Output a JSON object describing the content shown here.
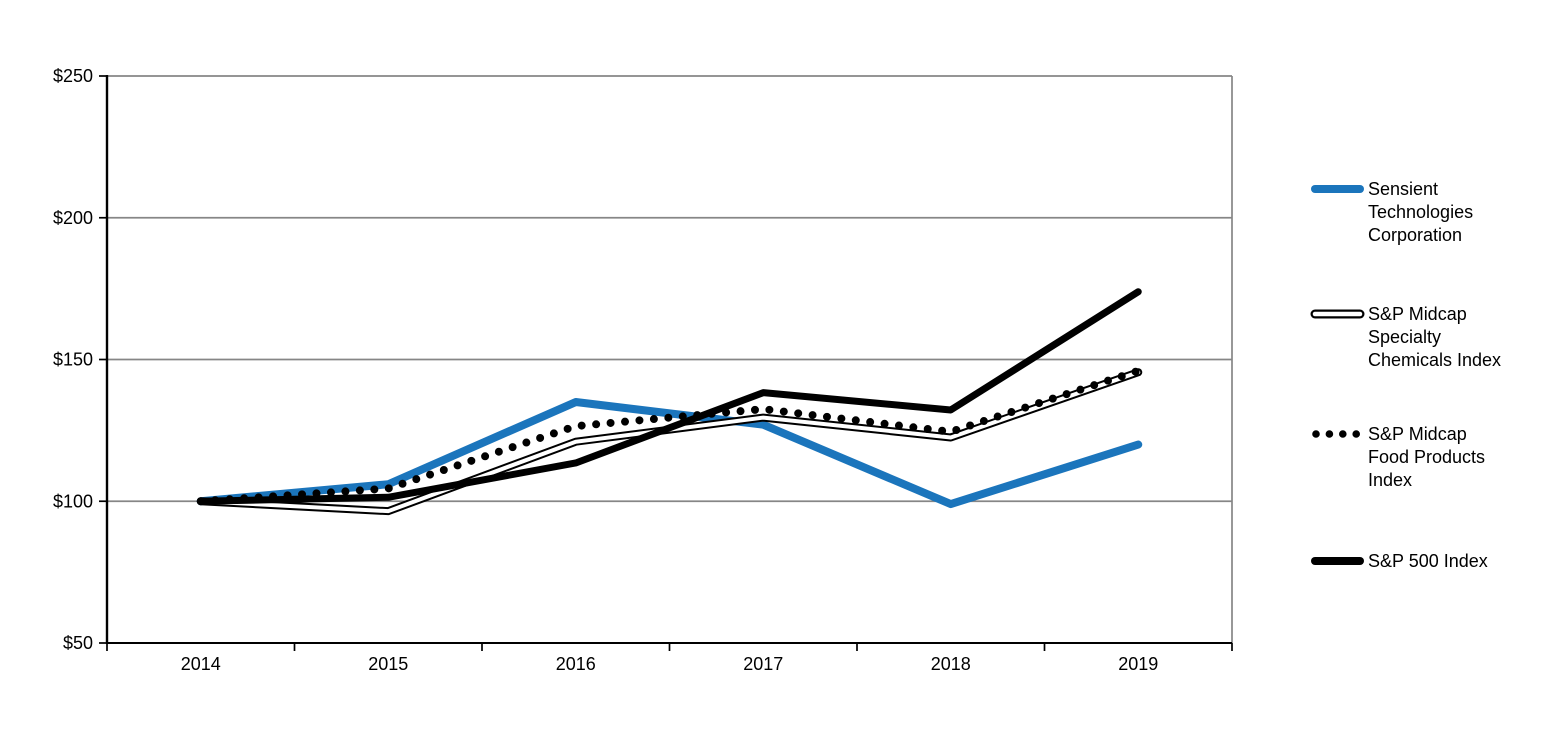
{
  "chart_data": {
    "type": "line",
    "title": "",
    "categories": [
      "2014",
      "2015",
      "2016",
      "2017",
      "2018",
      "2019"
    ],
    "series": [
      {
        "name": "Sensient Technologies Corporation",
        "style": "solid",
        "color": "#1B75BC",
        "width": 8,
        "values": [
          100,
          106,
          135,
          127,
          99,
          120
        ]
      },
      {
        "name": "S&P Midcap Specialty Chemicals Index",
        "style": "double",
        "color": "#000000",
        "width": 8,
        "values": [
          100,
          96.5,
          121,
          129.5,
          122.5,
          145.5
        ]
      },
      {
        "name": "S&P Midcap Food Products Index",
        "style": "dotted",
        "color": "#000000",
        "width": 8,
        "values": [
          100,
          104.5,
          126.5,
          132.5,
          124.5,
          146
        ]
      },
      {
        "name": "S&P 500 Index",
        "style": "solid",
        "color": "#000000",
        "width": 7,
        "values": [
          100,
          101.4,
          113.5,
          138.3,
          132.2,
          173.9
        ]
      }
    ],
    "y_axis": {
      "min": 50,
      "max": 250,
      "tick_step": 50,
      "tick_values": [
        50,
        100,
        150,
        200,
        250
      ],
      "tick_labels": [
        "$50",
        "$100",
        "$150",
        "$200",
        "$250"
      ]
    },
    "x_axis": {
      "labels": [
        "2014",
        "2015",
        "2016",
        "2017",
        "2018",
        "2019"
      ]
    },
    "grid": true,
    "gridline_color": "#868686",
    "axis_color": "#000000",
    "legend_position": "right"
  },
  "legend": {
    "items": [
      {
        "label": "Sensient\nTechnologies\nCorporation"
      },
      {
        "label": "S&P Midcap\nSpecialty\nChemicals Index"
      },
      {
        "label": "S&P Midcap\nFood Products\nIndex"
      },
      {
        "label": "S&P 500 Index"
      }
    ]
  }
}
